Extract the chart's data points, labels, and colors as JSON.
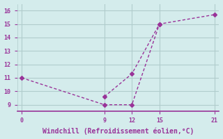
{
  "xlabel": "Windchill (Refroidissement éolien,°C)",
  "line1_x": [
    0,
    9,
    12,
    15
  ],
  "line1_y": [
    11,
    9,
    9,
    15
  ],
  "line2_x": [
    9,
    12,
    15,
    21
  ],
  "line2_y": [
    9.6,
    11.3,
    15,
    15.7
  ],
  "xlim": [
    -0.5,
    21.5
  ],
  "ylim": [
    8.5,
    16.5
  ],
  "xticks": [
    0,
    9,
    12,
    15,
    21
  ],
  "yticks": [
    9,
    10,
    11,
    12,
    13,
    14,
    15,
    16
  ],
  "line_color": "#993399",
  "bg_color": "#d4ecec",
  "grid_color": "#b0cccc",
  "tick_label_color": "#993399",
  "xlabel_color": "#993399",
  "marker": "D",
  "marker_size": 3,
  "line_width": 1.0
}
